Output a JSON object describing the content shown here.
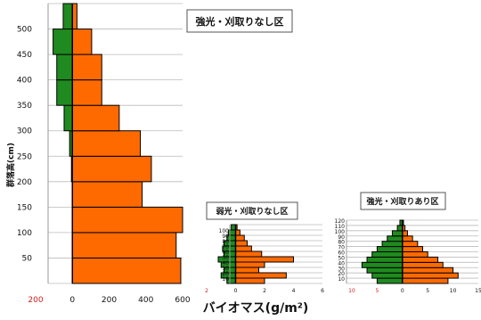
{
  "colors": {
    "green": "#1f8a1f",
    "orange": "#ff6a00",
    "grid": "#bbbbbb",
    "axis": "#000000"
  },
  "xlabel": "バイオマス(g/m²)",
  "ylabel": "群落高(cm)",
  "chart_data": [
    {
      "type": "bar",
      "orientation": "horizontal",
      "title": "強光・刈取りなし区",
      "x_ticks": [
        "200",
        "0",
        "200",
        "400",
        "600"
      ],
      "y_ticks": [
        "50",
        "100",
        "150",
        "200",
        "250",
        "300",
        "350",
        "400",
        "450",
        "500"
      ],
      "categories": [
        "0-50",
        "50-100",
        "100-150",
        "150-200",
        "200-250",
        "250-300",
        "300-350",
        "350-400",
        "400-450",
        "450-500",
        "500-550"
      ],
      "series": [
        {
          "values": [
            0,
            0,
            0,
            0,
            -5,
            -15,
            -45,
            -85,
            -85,
            -105,
            -50
          ]
        },
        {
          "values": [
            590,
            565,
            600,
            380,
            430,
            370,
            255,
            160,
            160,
            105,
            25
          ]
        }
      ],
      "xlim": [
        -200,
        600
      ],
      "ylim": [
        0,
        550
      ]
    },
    {
      "type": "bar",
      "orientation": "horizontal",
      "title": "弱光・刈取りなし区",
      "x_ticks": [
        "2",
        "0",
        "2",
        "4",
        "6"
      ],
      "y_ticks": [
        "10",
        "20",
        "30",
        "40",
        "50",
        "60",
        "70",
        "80",
        "90",
        "100"
      ],
      "categories": [
        "0-10",
        "10-20",
        "20-30",
        "30-40",
        "40-50",
        "50-60",
        "60-70",
        "70-80",
        "80-90",
        "90-100",
        "100-110"
      ],
      "series": [
        {
          "values": [
            -0.6,
            -1.0,
            -0.8,
            -1.0,
            -1.2,
            -0.8,
            -0.9,
            -0.8,
            -0.6,
            -0.5,
            -0.3
          ]
        },
        {
          "values": [
            2.0,
            3.5,
            1.6,
            2.0,
            4.0,
            1.8,
            1.1,
            0.8,
            0.6,
            0.3,
            0.1
          ]
        }
      ],
      "xlim": [
        -2,
        6
      ],
      "ylim": [
        0,
        110
      ]
    },
    {
      "type": "bar",
      "orientation": "horizontal",
      "title": "強光・刈取りあり区",
      "x_ticks": [
        "10",
        "5",
        "0",
        "5",
        "10",
        "15"
      ],
      "y_ticks": [
        "10",
        "20",
        "30",
        "40",
        "50",
        "60",
        "70",
        "80",
        "90",
        "100",
        "110",
        "120"
      ],
      "categories": [
        "0-10",
        "10-20",
        "20-30",
        "30-40",
        "40-50",
        "50-60",
        "60-70",
        "70-80",
        "80-90",
        "90-100",
        "100-110",
        "110-120"
      ],
      "series": [
        {
          "values": [
            -5,
            -6,
            -7,
            -8,
            -7,
            -6,
            -5,
            -4,
            -3,
            -2,
            -1,
            -0.5
          ]
        },
        {
          "values": [
            9,
            11,
            10,
            8,
            7,
            5,
            4,
            3,
            2,
            1,
            0.5,
            0.2
          ]
        }
      ],
      "xlim": [
        -10,
        15
      ],
      "ylim": [
        0,
        125
      ]
    }
  ]
}
